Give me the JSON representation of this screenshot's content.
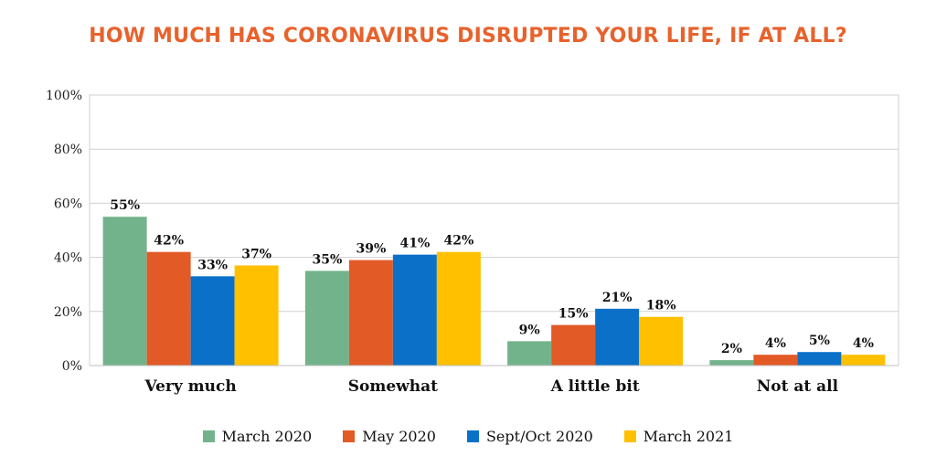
{
  "chart_data": {
    "type": "bar",
    "title": "HOW MUCH HAS CORONAVIRUS DISRUPTED YOUR LIFE, IF AT ALL?",
    "categories": [
      "Very much",
      "Somewhat",
      "A little bit",
      "Not at all"
    ],
    "series": [
      {
        "name": "March 2020",
        "color": "#73b38c",
        "values": [
          55,
          35,
          9,
          2
        ]
      },
      {
        "name": "May 2020",
        "color": "#e25a26",
        "values": [
          42,
          39,
          15,
          4
        ]
      },
      {
        "name": "Sept/Oct 2020",
        "color": "#0a70c8",
        "values": [
          33,
          41,
          21,
          5
        ]
      },
      {
        "name": "March 2021",
        "color": "#ffc000",
        "values": [
          37,
          42,
          18,
          4
        ]
      }
    ],
    "ylim": [
      0,
      100
    ],
    "yticks": [
      "0%",
      "20%",
      "40%",
      "60%",
      "80%",
      "100%"
    ],
    "value_suffix": "%",
    "grid": true,
    "legend_position": "bottom"
  }
}
